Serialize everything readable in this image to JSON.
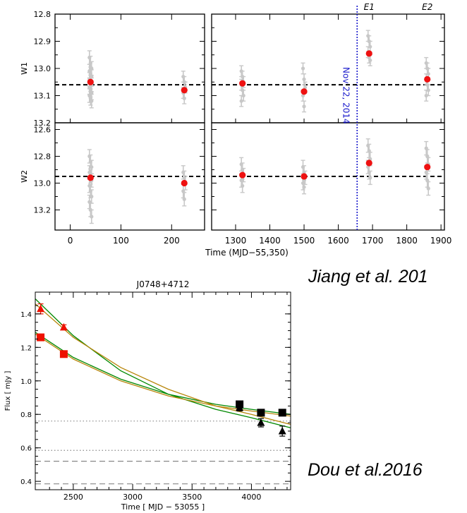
{
  "citations": {
    "top": "Jiang et al. 201",
    "bottom": "Dou et al.2016"
  },
  "chart_data": [
    {
      "type": "scatter",
      "title": "",
      "xlabel": "Time (MJD−55,350)",
      "xticks": [
        0,
        100,
        200,
        1300,
        1400,
        1500,
        1600,
        1700,
        1800,
        1900
      ],
      "x_break": [
        [
          -30,
          265
        ],
        [
          1230,
          1910
        ]
      ],
      "event_line": {
        "x": 1655,
        "label": "Nov 22, 2014",
        "color": "#1a1acc"
      },
      "epoch_labels": [
        {
          "x": 1690,
          "text": "E1"
        },
        {
          "x": 1860,
          "text": "E2"
        }
      ],
      "colors": {
        "individual": "#c8c8c8",
        "mean": "#ee1111",
        "baseline": "#000000"
      },
      "panels": [
        {
          "band": "W1",
          "ylim": [
            13.2,
            12.8
          ],
          "yticks": [
            12.8,
            12.9,
            13.0,
            13.1,
            13.2
          ],
          "baseline": 13.06,
          "means": [
            {
              "x": 40,
              "y": 13.05,
              "err": 0.015
            },
            {
              "x": 225,
              "y": 13.08,
              "err": 0.015
            },
            {
              "x": 1320,
              "y": 13.055,
              "err": 0.015
            },
            {
              "x": 1500,
              "y": 13.085,
              "err": 0.015
            },
            {
              "x": 1690,
              "y": 12.945,
              "err": 0.015
            },
            {
              "x": 1860,
              "y": 13.04,
              "err": 0.015
            }
          ],
          "individual": [
            {
              "x": 40,
              "y": [
                12.96,
                12.98,
                13.0,
                13.01,
                13.02,
                13.03,
                13.04,
                13.05,
                13.06,
                13.07,
                13.08,
                13.09,
                13.1,
                13.11,
                13.12
              ],
              "err": 0.025
            },
            {
              "x": 225,
              "y": [
                13.03,
                13.05,
                13.07,
                13.09,
                13.11
              ],
              "err": 0.02
            },
            {
              "x": 1320,
              "y": [
                13.01,
                13.03,
                13.05,
                13.06,
                13.08,
                13.1,
                13.12
              ],
              "err": 0.02
            },
            {
              "x": 1500,
              "y": [
                13.0,
                13.04,
                13.07,
                13.1,
                13.14
              ],
              "err": 0.02
            },
            {
              "x": 1690,
              "y": [
                12.88,
                12.9,
                12.92,
                12.94,
                12.96,
                12.97
              ],
              "err": 0.02
            },
            {
              "x": 1860,
              "y": [
                12.98,
                13.0,
                13.02,
                13.04,
                13.06,
                13.08,
                13.1
              ],
              "err": 0.02
            }
          ]
        },
        {
          "band": "W2",
          "ylim": [
            13.35,
            12.55
          ],
          "yticks": [
            12.6,
            12.8,
            13.0,
            13.2
          ],
          "baseline": 12.95,
          "means": [
            {
              "x": 40,
              "y": 12.96,
              "err": 0.02
            },
            {
              "x": 225,
              "y": 13.0,
              "err": 0.02
            },
            {
              "x": 1320,
              "y": 12.94,
              "err": 0.02
            },
            {
              "x": 1500,
              "y": 12.95,
              "err": 0.02
            },
            {
              "x": 1690,
              "y": 12.85,
              "err": 0.02
            },
            {
              "x": 1860,
              "y": 12.88,
              "err": 0.02
            }
          ],
          "individual": [
            {
              "x": 40,
              "y": [
                12.8,
                12.84,
                12.88,
                12.92,
                12.95,
                12.98,
                13.02,
                13.06,
                13.1,
                13.14,
                13.2,
                13.25
              ],
              "err": 0.05
            },
            {
              "x": 225,
              "y": [
                12.92,
                12.96,
                13.0,
                13.06,
                13.12
              ],
              "err": 0.05
            },
            {
              "x": 1320,
              "y": [
                12.86,
                12.9,
                12.94,
                12.98,
                13.02
              ],
              "err": 0.05
            },
            {
              "x": 1500,
              "y": [
                12.88,
                12.92,
                12.96,
                13.0,
                13.03
              ],
              "err": 0.05
            },
            {
              "x": 1690,
              "y": [
                12.72,
                12.76,
                12.82,
                12.88,
                12.92,
                12.96
              ],
              "err": 0.05
            },
            {
              "x": 1860,
              "y": [
                12.74,
                12.8,
                12.86,
                12.92,
                12.98,
                13.04
              ],
              "err": 0.05
            }
          ]
        }
      ]
    },
    {
      "type": "scatter",
      "title": "J0748+4712",
      "xlabel": "Time   [ MJD  −  53055 ]",
      "ylabel": "Flux  [  mJy  ]",
      "xlim": [
        2180,
        4330
      ],
      "ylim": [
        0.35,
        1.53
      ],
      "xticks": [
        2500,
        3000,
        3500,
        4000
      ],
      "yticks": [
        0.4,
        0.6,
        0.8,
        1.0,
        1.2,
        1.4
      ],
      "colors": {
        "red": "#ee1100",
        "black": "#000000",
        "curve_green": "#008800",
        "curve_gold": "#b8860b",
        "ref": "#888888"
      },
      "series": [
        {
          "marker": "triangle",
          "color": "red",
          "x": [
            2225,
            2420
          ],
          "y": [
            1.43,
            1.32
          ],
          "err": [
            0.03,
            0.015
          ]
        },
        {
          "marker": "square",
          "color": "red",
          "x": [
            2225,
            2420
          ],
          "y": [
            1.26,
            1.16
          ],
          "err": [
            0.01,
            0.01
          ]
        },
        {
          "marker": "square",
          "color": "black",
          "x": [
            3900,
            4080,
            4260
          ],
          "y": [
            0.86,
            0.81,
            0.81
          ],
          "err": [
            0.01,
            0.01,
            0.01
          ]
        },
        {
          "marker": "triangle",
          "color": "black",
          "x": [
            3900,
            4080,
            4260
          ],
          "y": [
            0.84,
            0.75,
            0.7
          ],
          "err": [
            0.02,
            0.025,
            0.03
          ]
        }
      ],
      "curves": [
        {
          "color": "curve_green",
          "x": [
            2180,
            2500,
            2900,
            3300,
            3700,
            4000,
            4330
          ],
          "y": [
            1.29,
            1.14,
            1.01,
            0.92,
            0.86,
            0.83,
            0.8
          ]
        },
        {
          "color": "curve_green",
          "x": [
            2180,
            2500,
            2900,
            3300,
            3700,
            4000,
            4330
          ],
          "y": [
            1.49,
            1.27,
            1.06,
            0.92,
            0.83,
            0.78,
            0.72
          ]
        },
        {
          "color": "curve_gold",
          "x": [
            2180,
            2500,
            2900,
            3300,
            3700,
            4000,
            4330
          ],
          "y": [
            1.46,
            1.26,
            1.08,
            0.95,
            0.85,
            0.8,
            0.74
          ]
        },
        {
          "color": "curve_gold",
          "x": [
            2180,
            2500,
            2900,
            3300,
            3700,
            4000,
            4330
          ],
          "y": [
            1.28,
            1.13,
            1.0,
            0.91,
            0.85,
            0.82,
            0.79
          ]
        }
      ],
      "ref_lines": [
        {
          "y": 0.76,
          "style": "dotted"
        },
        {
          "y": 0.585,
          "style": "dotted"
        },
        {
          "y": 0.52,
          "style": "dashed"
        },
        {
          "y": 0.385,
          "style": "dashed"
        }
      ]
    }
  ]
}
